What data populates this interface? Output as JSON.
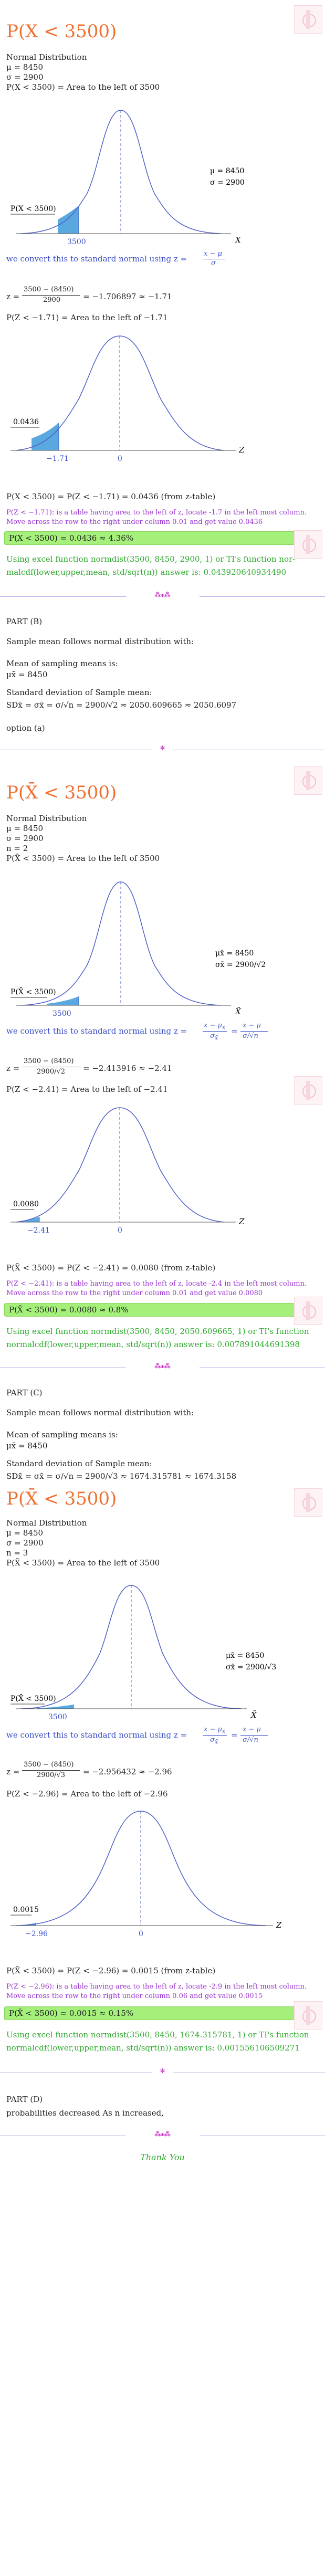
{
  "part_a": {
    "title_1": "P(X < 3500)",
    "given": [
      "Normal Distribution",
      "μ = 8450",
      "σ = 2900",
      "P(X < 3500) = Area to the left of 3500"
    ],
    "curve1": {
      "left_label": "P(X < 3500)",
      "cut": "3500",
      "mean": "8450",
      "axis": "X",
      "legend": [
        "μ = 8450",
        "σ = 2900"
      ]
    },
    "convert_text": "we convert this to standard normal using z =",
    "z_formula_num": "x − μ",
    "z_formula_den": "σ",
    "z_calc_prefix": "z =",
    "z_calc_num": "3500 − (8450)",
    "z_calc_den": "2900",
    "z_calc_result": "= −1.706897 ≈ −1.71",
    "pz_line": "P(Z < −1.71) = Area to the left of −1.71",
    "curve2": {
      "area_label": "0.0436",
      "cut": "−1.71",
      "mean": "0",
      "axis": "Z"
    },
    "result_line": "P(X < 3500) = P(Z < −1.71) = 0.0436 (from z-table)",
    "purple_note": "P(Z < −1.71): is a table having area to the left of z, locate -1.7 in the left most column. Move across the row to the right under column 0.01 and get value 0.0436",
    "answer": "P(X < 3500) = 0.0436 ≈ 4.36%",
    "excel_line1": "Using excel function normdist(3500, 8450, 2900, 1) or TI's function nor-",
    "excel_line2": "malcdf(lower,upper,mean, std/sqrt(n)) answer is: 0.043920640934490"
  },
  "separator": "⁂⁎⁂",
  "part_b": {
    "label": "PART (B)",
    "intro": "Sample mean follows normal distribution with:",
    "mean_title": "Mean of sampling means is:",
    "mean_val": "μx̄ = 8450",
    "sd_title": "Standard deviation of Sample mean:",
    "sd_line": "SDx̄ = σx̄ = σ/√n = 2900/√2 ≈ 2050.609665 ≈ 2050.6097",
    "option": "option (a)",
    "title": "P(X̄ < 3500)",
    "given": [
      "Normal Distribution",
      "μ = 8450",
      "σ = 2900",
      "n = 2",
      "P(X̄ < 3500) = Area to the left of 3500"
    ],
    "curve1": {
      "left_label": "P(X̄ < 3500)",
      "cut": "3500",
      "mean": "8450",
      "axis": "X̄",
      "legend": [
        "μx̄ = 8450",
        "σx̄ = 2900/√2"
      ]
    },
    "convert_text": "we convert this to standard normal using z =",
    "z_calc_num": "3500 − (8450)",
    "z_calc_den": "2900/√2",
    "z_calc_result": "= −2.413916 ≈ −2.41",
    "pz_line": "P(Z < −2.41) = Area to the left of −2.41",
    "curve2": {
      "area_label": "0.0080",
      "cut": "−2.41",
      "mean": "0",
      "axis": "Z"
    },
    "result_line": "P(X̄ < 3500) = P(Z < −2.41) = 0.0080 (from z-table)",
    "purple_note": "P(Z < −2.41): is a table having area to the left of z, locate -2.4 in the left most column. Move across the row to the right under column 0.01 and get value 0.0080",
    "answer": "P(X̄ < 3500) = 0.0080 ≈ 0.8%",
    "excel_line1": "Using excel function normdist(3500, 8450, 2050.609665, 1) or TI's function",
    "excel_line2": "normalcdf(lower,upper,mean, std/sqrt(n)) answer is: 0.007891044691398"
  },
  "part_c": {
    "label": "PART (C)",
    "intro": "Sample mean follows normal distribution with:",
    "mean_title": "Mean of sampling means is:",
    "mean_val": "μx̄ = 8450",
    "sd_title": "Standard deviation of Sample mean:",
    "sd_line": "SDx̄ = σx̄ = σ/√n = 2900/√3 ≈ 1674.315781 ≈ 1674.3158",
    "title": "P(X̄ < 3500)",
    "given": [
      "Normal Distribution",
      "μ = 8450",
      "σ = 2900",
      "n = 3",
      "P(X̄ < 3500) = Area to the left of 3500"
    ],
    "curve1": {
      "left_label": "P(X̄ < 3500)",
      "cut": "3500",
      "mean": "8450",
      "axis": "X̄",
      "legend": [
        "μx̄ = 8450",
        "σx̄ = 2900/√3"
      ]
    },
    "convert_text": "we convert this to standard normal using z =",
    "z_calc_num": "3500 − (8450)",
    "z_calc_den": "2900/√3",
    "z_calc_result": "= −2.956432 ≈ −2.96",
    "pz_line": "P(Z < −2.96) = Area to the left of −2.96",
    "curve2": {
      "area_label": "0.0015",
      "cut": "−2.96",
      "mean": "0",
      "axis": "Z"
    },
    "result_line": "P(X̄ < 3500) = P(Z < −2.96) = 0.0015 (from z-table)",
    "purple_note": "P(Z < −2.96): is a table having area to the left of z, locate -2.9 in the left most column. Move across the row to the right under column 0.06 and get value 0.0015",
    "answer": "P(X̄ < 3500) = 0.0015 ≈ 0.15%",
    "excel_line1": "Using excel function normdist(3500, 8450, 1674.315781, 1) or TI's function",
    "excel_line2": "normalcdf(lower,upper,mean, std/sqrt(n)) answer is: 0.001556106509271"
  },
  "part_d": {
    "label": "PART (D)",
    "text": "probabilities decreased As n increased,"
  },
  "thanks": "Thank You",
  "colors": {
    "accent": "#f07030",
    "blue": "#3b50c8",
    "purple": "#9b35d0",
    "green": "#2eaa2e",
    "answer_bg": "#a4f07a"
  }
}
